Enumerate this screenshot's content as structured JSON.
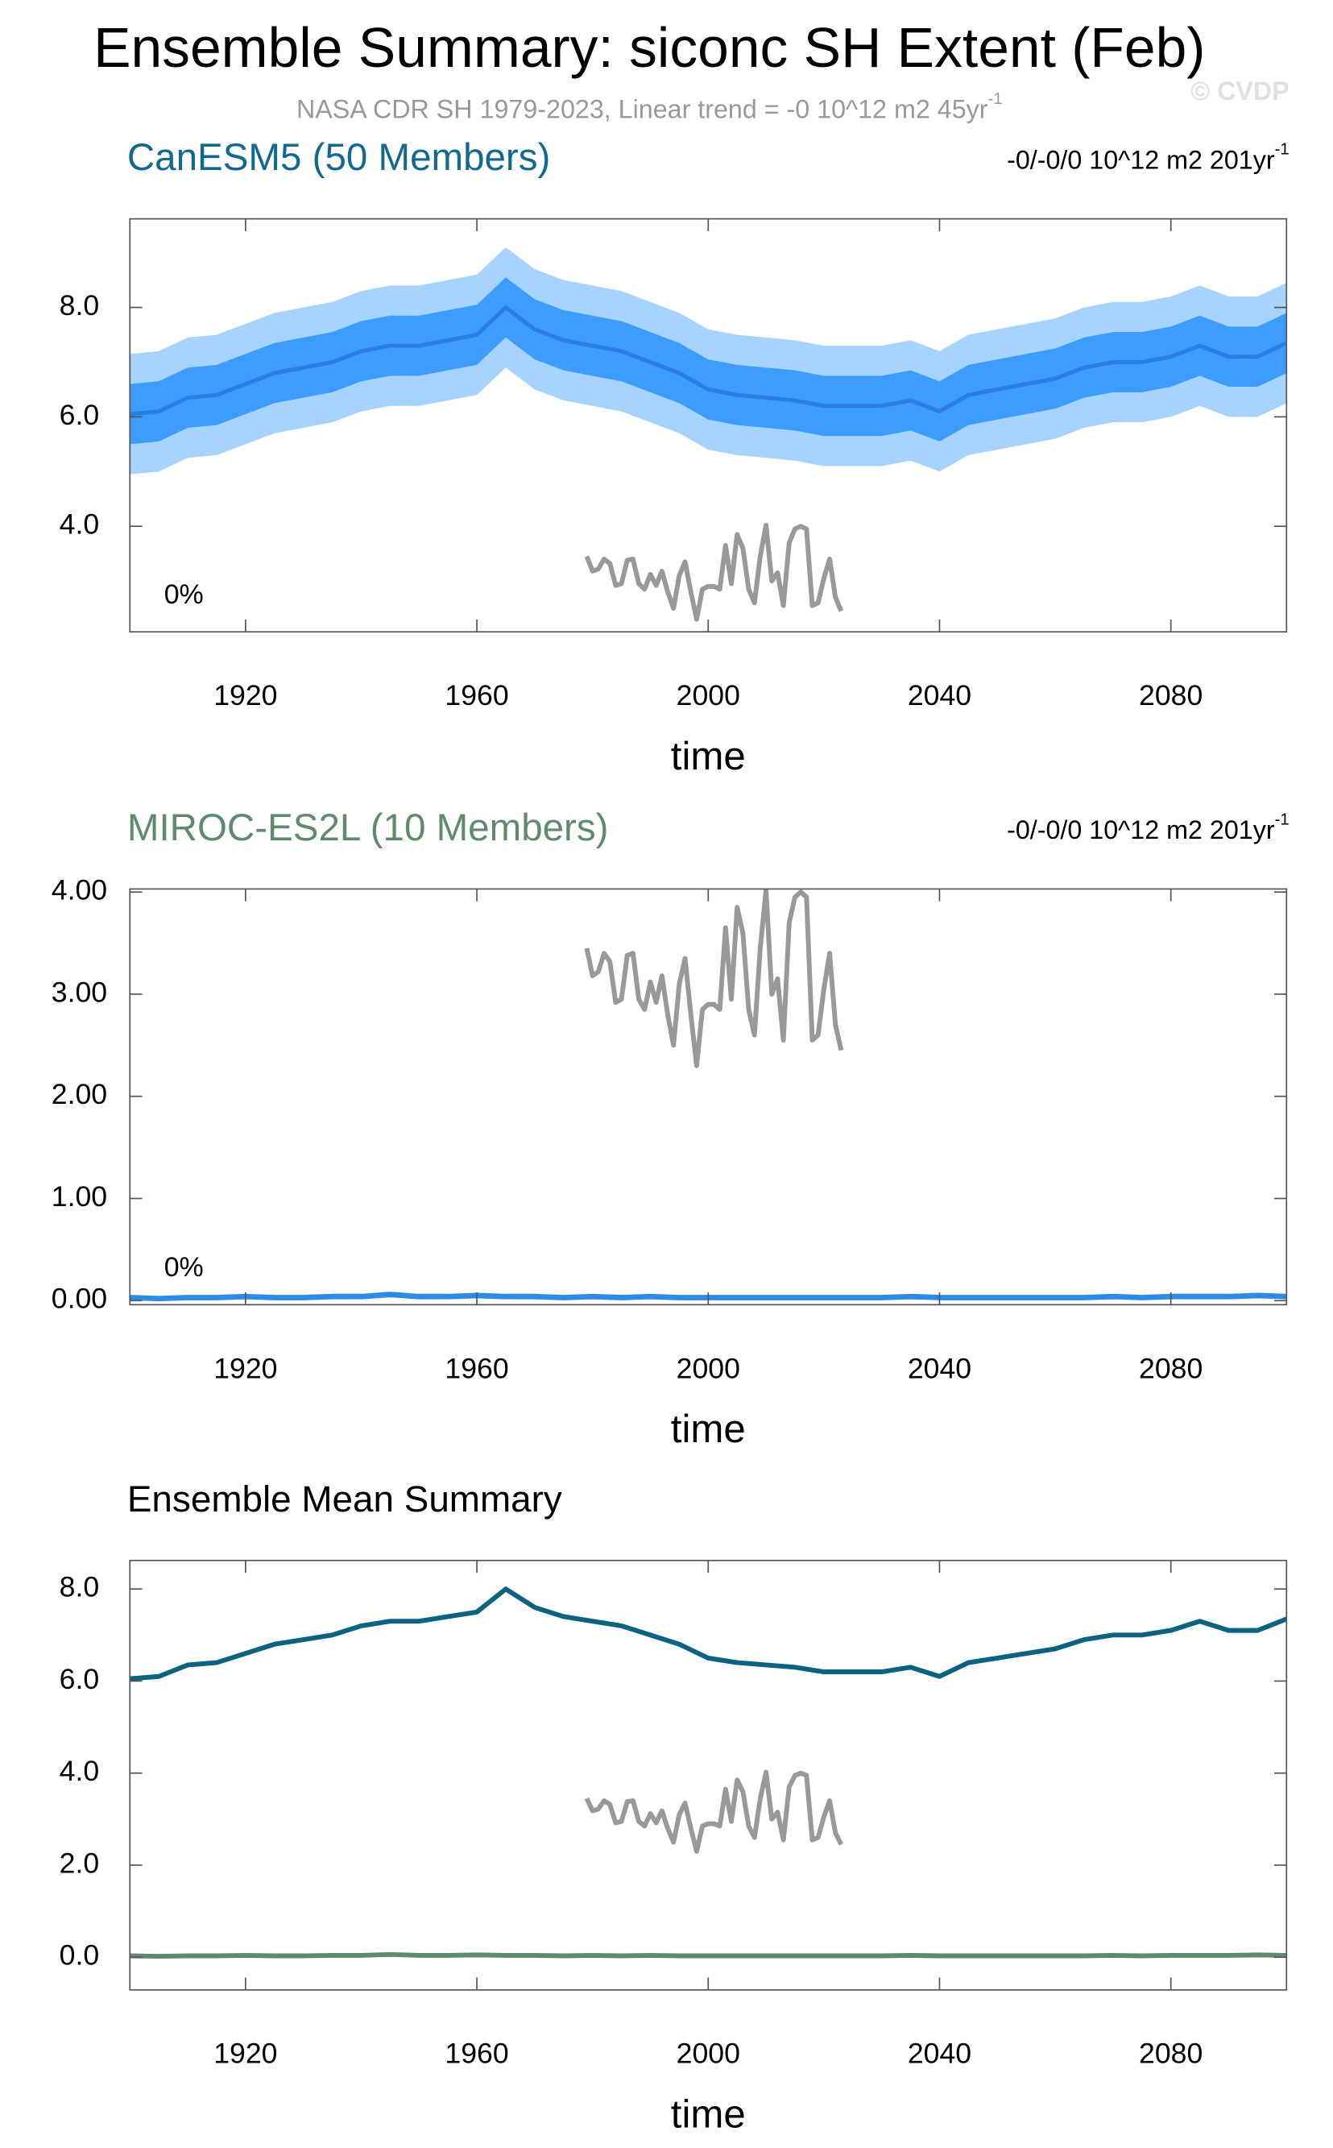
{
  "title": "Ensemble Summary: siconc SH Extent (Feb)",
  "subtitle": "NASA CDR SH 1979-2023, Linear trend = -0 10^12 m2 45yr",
  "subtitle_sup": "-1",
  "watermark": "© CVDP",
  "chart_data": [
    {
      "type": "line",
      "title": "CanESM5 (50 Members)",
      "title_color": "#12698f",
      "annotation": "-0/-0/0 10^12 m2 201yr",
      "annotation_sup": "-1",
      "percent_label": "0%",
      "xlabel": "time",
      "x": [
        1900,
        1905,
        1910,
        1915,
        1920,
        1925,
        1930,
        1935,
        1940,
        1945,
        1950,
        1955,
        1960,
        1965,
        1970,
        1975,
        1980,
        1985,
        1990,
        1995,
        2000,
        2005,
        2010,
        2015,
        2020,
        2025,
        2030,
        2035,
        2040,
        2045,
        2050,
        2055,
        2060,
        2065,
        2070,
        2075,
        2080,
        2085,
        2090,
        2095,
        2100
      ],
      "xlim": [
        1900,
        2100
      ],
      "xticks": [
        1920,
        1960,
        2000,
        2040,
        2080
      ],
      "ylim": [
        2.07,
        9.62
      ],
      "yticks": [
        {
          "value": 4,
          "label": "4.0"
        },
        {
          "value": 6,
          "label": "6.0"
        },
        {
          "value": 8,
          "label": "8.0"
        }
      ],
      "bands": [
        {
          "color": "#a6d3ff",
          "lower": [
            4.95,
            5.0,
            5.25,
            5.3,
            5.5,
            5.7,
            5.8,
            5.9,
            6.1,
            6.2,
            6.2,
            6.3,
            6.4,
            6.9,
            6.5,
            6.3,
            6.2,
            6.1,
            5.9,
            5.7,
            5.4,
            5.3,
            5.25,
            5.2,
            5.1,
            5.1,
            5.1,
            5.2,
            5.0,
            5.3,
            5.4,
            5.5,
            5.6,
            5.8,
            5.9,
            5.9,
            6.0,
            6.2,
            6.0,
            6.0,
            6.25
          ],
          "upper": [
            7.15,
            7.2,
            7.45,
            7.5,
            7.7,
            7.9,
            8.0,
            8.1,
            8.3,
            8.4,
            8.4,
            8.5,
            8.6,
            9.1,
            8.7,
            8.5,
            8.4,
            8.3,
            8.1,
            7.9,
            7.6,
            7.5,
            7.45,
            7.4,
            7.3,
            7.3,
            7.3,
            7.4,
            7.2,
            7.5,
            7.6,
            7.7,
            7.8,
            8.0,
            8.1,
            8.1,
            8.2,
            8.4,
            8.2,
            8.2,
            8.45
          ]
        },
        {
          "color": "#3d9cff",
          "lower": [
            5.5,
            5.55,
            5.8,
            5.85,
            6.05,
            6.25,
            6.35,
            6.45,
            6.65,
            6.75,
            6.75,
            6.85,
            6.95,
            7.45,
            7.05,
            6.85,
            6.75,
            6.65,
            6.45,
            6.25,
            5.95,
            5.85,
            5.8,
            5.75,
            5.65,
            5.65,
            5.65,
            5.75,
            5.55,
            5.85,
            5.95,
            6.05,
            6.15,
            6.35,
            6.45,
            6.45,
            6.55,
            6.75,
            6.55,
            6.55,
            6.8
          ],
          "upper": [
            6.6,
            6.65,
            6.9,
            6.95,
            7.15,
            7.35,
            7.45,
            7.55,
            7.75,
            7.85,
            7.85,
            7.95,
            8.05,
            8.55,
            8.15,
            7.95,
            7.85,
            7.75,
            7.55,
            7.35,
            7.05,
            6.95,
            6.9,
            6.85,
            6.75,
            6.75,
            6.75,
            6.85,
            6.65,
            6.95,
            7.05,
            7.15,
            7.25,
            7.45,
            7.55,
            7.55,
            7.65,
            7.85,
            7.65,
            7.65,
            7.9
          ]
        }
      ],
      "series": [
        {
          "color": "#2a80e0",
          "width": 3,
          "values": [
            6.05,
            6.1,
            6.35,
            6.4,
            6.6,
            6.8,
            6.9,
            7.0,
            7.2,
            7.3,
            7.3,
            7.4,
            7.5,
            8.0,
            7.6,
            7.4,
            7.3,
            7.2,
            7.0,
            6.8,
            6.5,
            6.4,
            6.35,
            6.3,
            6.2,
            6.2,
            6.2,
            6.3,
            6.1,
            6.4,
            6.5,
            6.6,
            6.7,
            6.9,
            7.0,
            7.0,
            7.1,
            7.3,
            7.1,
            7.1,
            7.35
          ]
        },
        {
          "color": "#999999",
          "width": 3.5,
          "x": [
            1979,
            1980,
            1981,
            1982,
            1983,
            1984,
            1985,
            1986,
            1987,
            1988,
            1989,
            1990,
            1991,
            1992,
            1993,
            1994,
            1995,
            1996,
            1997,
            1998,
            1999,
            2000,
            2001,
            2002,
            2003,
            2004,
            2005,
            2006,
            2007,
            2008,
            2009,
            2010,
            2011,
            2012,
            2013,
            2014,
            2015,
            2016,
            2017,
            2018,
            2019,
            2020,
            2021,
            2022,
            2023
          ],
          "values": [
            3.45,
            3.18,
            3.22,
            3.4,
            3.32,
            2.92,
            2.95,
            3.38,
            3.4,
            2.95,
            2.85,
            3.12,
            2.92,
            3.18,
            2.8,
            2.5,
            3.1,
            3.35,
            2.8,
            2.3,
            2.85,
            2.9,
            2.9,
            2.85,
            3.65,
            2.95,
            3.85,
            3.6,
            2.85,
            2.6,
            3.45,
            4.02,
            3.0,
            3.15,
            2.55,
            3.7,
            3.95,
            4.0,
            3.95,
            2.55,
            2.6,
            3.05,
            3.4,
            2.7,
            2.45
          ]
        }
      ]
    },
    {
      "type": "line",
      "title": "MIROC-ES2L (10 Members)",
      "title_color": "#5f8a6e",
      "annotation": "-0/-0/0 10^12 m2 201yr",
      "annotation_sup": "-1",
      "percent_label": "0%",
      "xlabel": "time",
      "x": [
        1900,
        1905,
        1910,
        1915,
        1920,
        1925,
        1930,
        1935,
        1940,
        1945,
        1950,
        1955,
        1960,
        1965,
        1970,
        1975,
        1980,
        1985,
        1990,
        1995,
        2000,
        2005,
        2010,
        2015,
        2020,
        2025,
        2030,
        2035,
        2040,
        2045,
        2050,
        2055,
        2060,
        2065,
        2070,
        2075,
        2080,
        2085,
        2090,
        2095,
        2100
      ],
      "xlim": [
        1900,
        2100
      ],
      "xticks": [
        1920,
        1960,
        2000,
        2040,
        2080
      ],
      "ylim": [
        -0.04,
        4.03
      ],
      "yticks": [
        {
          "value": 0,
          "label": "0.00"
        },
        {
          "value": 1,
          "label": "1.00"
        },
        {
          "value": 2,
          "label": "2.00"
        },
        {
          "value": 3,
          "label": "3.00"
        },
        {
          "value": 4,
          "label": "4.00"
        }
      ],
      "series": [
        {
          "color": "#2d8ae6",
          "width": 4,
          "values": [
            0.03,
            0.02,
            0.03,
            0.03,
            0.04,
            0.03,
            0.03,
            0.04,
            0.04,
            0.06,
            0.04,
            0.04,
            0.05,
            0.04,
            0.04,
            0.03,
            0.04,
            0.03,
            0.04,
            0.03,
            0.03,
            0.03,
            0.03,
            0.03,
            0.03,
            0.03,
            0.03,
            0.04,
            0.03,
            0.03,
            0.03,
            0.03,
            0.03,
            0.03,
            0.04,
            0.03,
            0.04,
            0.04,
            0.04,
            0.05,
            0.04
          ]
        },
        {
          "color": "#999999",
          "width": 3.5,
          "x": [
            1979,
            1980,
            1981,
            1982,
            1983,
            1984,
            1985,
            1986,
            1987,
            1988,
            1989,
            1990,
            1991,
            1992,
            1993,
            1994,
            1995,
            1996,
            1997,
            1998,
            1999,
            2000,
            2001,
            2002,
            2003,
            2004,
            2005,
            2006,
            2007,
            2008,
            2009,
            2010,
            2011,
            2012,
            2013,
            2014,
            2015,
            2016,
            2017,
            2018,
            2019,
            2020,
            2021,
            2022,
            2023
          ],
          "values": [
            3.45,
            3.18,
            3.22,
            3.4,
            3.32,
            2.92,
            2.95,
            3.38,
            3.4,
            2.95,
            2.85,
            3.12,
            2.92,
            3.18,
            2.8,
            2.5,
            3.1,
            3.35,
            2.8,
            2.3,
            2.85,
            2.9,
            2.9,
            2.85,
            3.65,
            2.95,
            3.85,
            3.6,
            2.85,
            2.6,
            3.45,
            4.02,
            3.0,
            3.15,
            2.55,
            3.7,
            3.95,
            4.0,
            3.95,
            2.55,
            2.6,
            3.05,
            3.4,
            2.7,
            2.45
          ]
        }
      ]
    },
    {
      "type": "line",
      "title": "Ensemble Mean Summary",
      "title_color": "#000000",
      "xlabel": "time",
      "x": [
        1900,
        1905,
        1910,
        1915,
        1920,
        1925,
        1930,
        1935,
        1940,
        1945,
        1950,
        1955,
        1960,
        1965,
        1970,
        1975,
        1980,
        1985,
        1990,
        1995,
        2000,
        2005,
        2010,
        2015,
        2020,
        2025,
        2030,
        2035,
        2040,
        2045,
        2050,
        2055,
        2060,
        2065,
        2070,
        2075,
        2080,
        2085,
        2090,
        2095,
        2100
      ],
      "xlim": [
        1900,
        2100
      ],
      "xticks": [
        1920,
        1960,
        2000,
        2040,
        2080
      ],
      "ylim": [
        -0.71,
        8.62
      ],
      "yticks": [
        {
          "value": 0,
          "label": "0.0"
        },
        {
          "value": 2,
          "label": "2.0"
        },
        {
          "value": 4,
          "label": "4.0"
        },
        {
          "value": 6,
          "label": "6.0"
        },
        {
          "value": 8,
          "label": "8.0"
        }
      ],
      "series": [
        {
          "color": "#0b6381",
          "width": 3.5,
          "values": [
            6.05,
            6.1,
            6.35,
            6.4,
            6.6,
            6.8,
            6.9,
            7.0,
            7.2,
            7.3,
            7.3,
            7.4,
            7.5,
            8.0,
            7.6,
            7.4,
            7.3,
            7.2,
            7.0,
            6.8,
            6.5,
            6.4,
            6.35,
            6.3,
            6.2,
            6.2,
            6.2,
            6.3,
            6.1,
            6.4,
            6.5,
            6.6,
            6.7,
            6.9,
            7.0,
            7.0,
            7.1,
            7.3,
            7.1,
            7.1,
            7.35
          ]
        },
        {
          "color": "#5f8a6e",
          "width": 3.5,
          "values": [
            0.03,
            0.02,
            0.03,
            0.03,
            0.04,
            0.03,
            0.03,
            0.04,
            0.04,
            0.06,
            0.04,
            0.04,
            0.05,
            0.04,
            0.04,
            0.03,
            0.04,
            0.03,
            0.04,
            0.03,
            0.03,
            0.03,
            0.03,
            0.03,
            0.03,
            0.03,
            0.03,
            0.04,
            0.03,
            0.03,
            0.03,
            0.03,
            0.03,
            0.03,
            0.04,
            0.03,
            0.04,
            0.04,
            0.04,
            0.05,
            0.04
          ]
        },
        {
          "color": "#999999",
          "width": 3.5,
          "x": [
            1979,
            1980,
            1981,
            1982,
            1983,
            1984,
            1985,
            1986,
            1987,
            1988,
            1989,
            1990,
            1991,
            1992,
            1993,
            1994,
            1995,
            1996,
            1997,
            1998,
            1999,
            2000,
            2001,
            2002,
            2003,
            2004,
            2005,
            2006,
            2007,
            2008,
            2009,
            2010,
            2011,
            2012,
            2013,
            2014,
            2015,
            2016,
            2017,
            2018,
            2019,
            2020,
            2021,
            2022,
            2023
          ],
          "values": [
            3.45,
            3.18,
            3.22,
            3.4,
            3.32,
            2.92,
            2.95,
            3.38,
            3.4,
            2.95,
            2.85,
            3.12,
            2.92,
            3.18,
            2.8,
            2.5,
            3.1,
            3.35,
            2.8,
            2.3,
            2.85,
            2.9,
            2.9,
            2.85,
            3.65,
            2.95,
            3.85,
            3.6,
            2.85,
            2.6,
            3.45,
            4.02,
            3.0,
            3.15,
            2.55,
            3.7,
            3.95,
            4.0,
            3.95,
            2.55,
            2.6,
            3.05,
            3.4,
            2.7,
            2.45
          ]
        }
      ]
    }
  ]
}
